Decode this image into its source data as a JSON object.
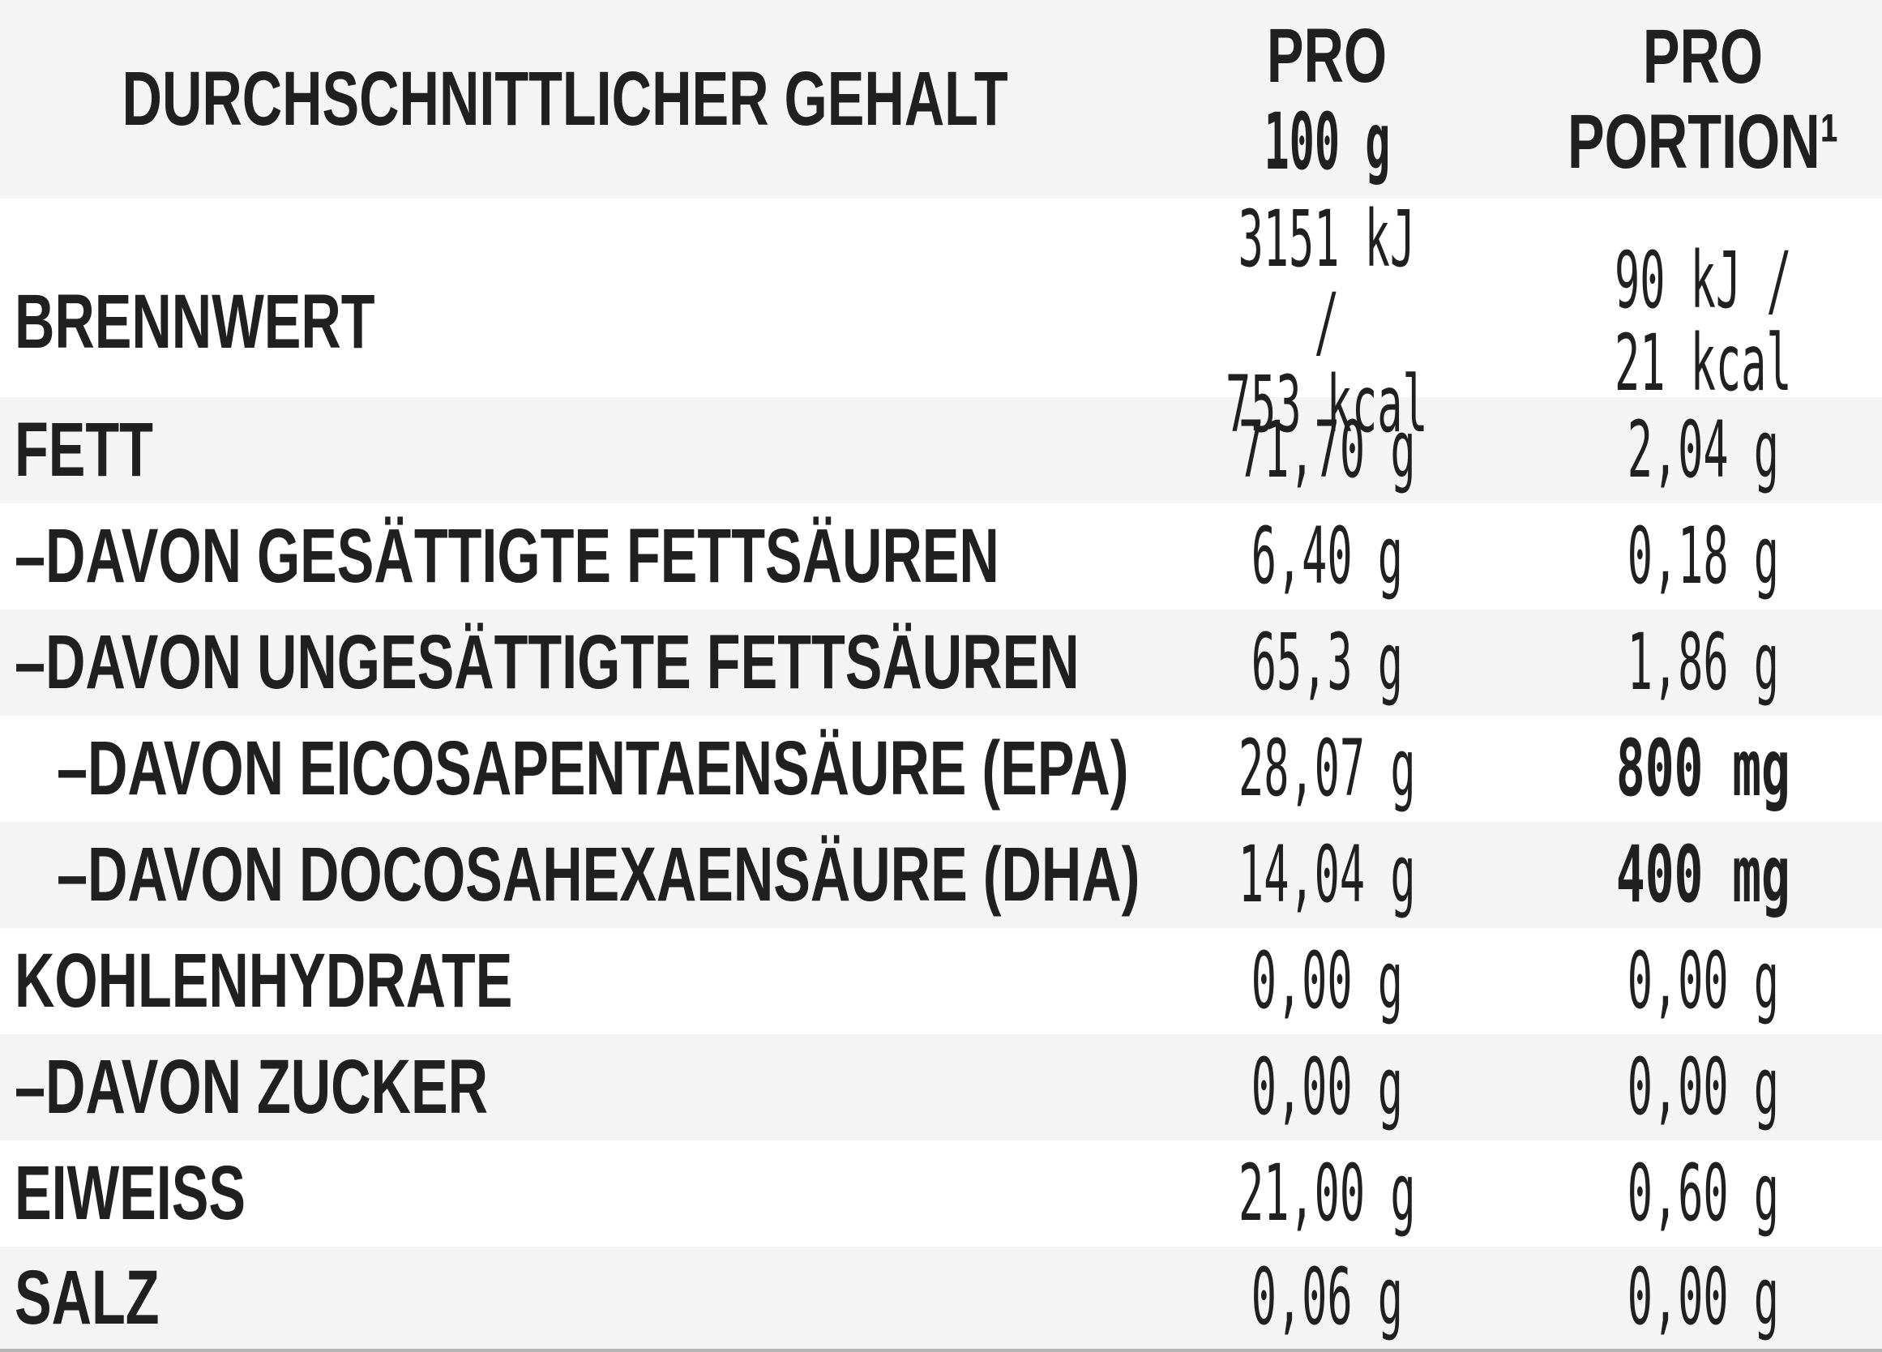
{
  "table": {
    "header": {
      "nutrient_col": "DURCHSCHNITTLICHER GEHALT",
      "per100_top": "PRO",
      "per100_bottom": "100 g",
      "portion_top": "PRO",
      "portion_bottom": "PORTION¹"
    },
    "rows": [
      {
        "label": "BRENNWERT",
        "per100": "3151 kJ /\n753 kcal",
        "portion": "90 kJ /\n21 kcal"
      },
      {
        "label": "FETT",
        "per100": "71,70 g",
        "portion": "2,04 g"
      },
      {
        "label": "–DAVON GESÄTTIGTE FETTSÄUREN",
        "per100": "6,40 g",
        "portion": "0,18 g"
      },
      {
        "label": "–DAVON UNGESÄTTIGTE FETTSÄUREN",
        "per100": "65,3 g",
        "portion": "1,86 g"
      },
      {
        "label": "–DAVON EICOSAPENTAENSÄURE (EPA)",
        "per100": "28,07 g",
        "portion": "800 mg"
      },
      {
        "label": "–DAVON DOCOSAHEXAENSÄURE (DHA)",
        "per100": "14,04 g",
        "portion": "400 mg"
      },
      {
        "label": "KOHLENHYDRATE",
        "per100": "0,00 g",
        "portion": "0,00 g"
      },
      {
        "label": "–DAVON ZUCKER",
        "per100": "0,00 g",
        "portion": "0,00 g"
      },
      {
        "label": "EIWEISS",
        "per100": "21,00 g",
        "portion": "0,60 g"
      },
      {
        "label": "SALZ",
        "per100": "0,06 g",
        "portion": "0,00 g"
      }
    ],
    "footnote_marker": "1"
  },
  "colors": {
    "stripe": "#f4f4f4",
    "text": "#202020",
    "bottom_rule": "#b5b5b5"
  }
}
